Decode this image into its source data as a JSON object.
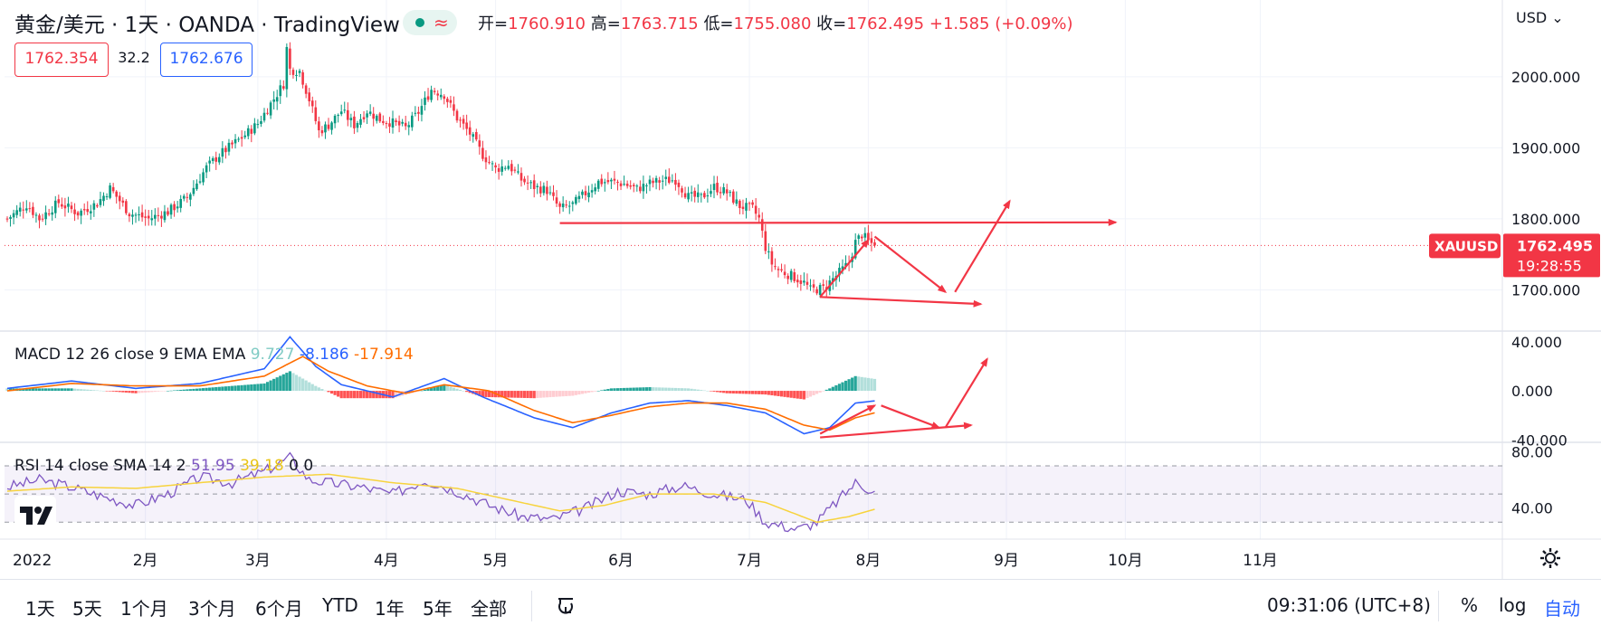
{
  "header": {
    "symbol_title": "黄金/美元 · 1天 · OANDA · TradingView",
    "ohlc": [
      {
        "k": "开=",
        "v": "1760.910"
      },
      {
        "k": "高=",
        "v": "1763.715"
      },
      {
        "k": "低=",
        "v": "1755.080"
      },
      {
        "k": "收=",
        "v": "1762.495"
      },
      {
        "k": "",
        "v": "+1.585 (+0.09%)"
      }
    ],
    "bid": "1762.354",
    "spread": "32.2",
    "ask": "1762.676",
    "live_icon": "wave-icon",
    "currency": "USD"
  },
  "macd_legend": {
    "label": "MACD 12 26 close 9 EMA EMA",
    "hist_value": "9.727",
    "macd_value": "-8.186",
    "signal_value": "-17.914",
    "colors": {
      "hist": "#80cbc4",
      "macd": "#2962ff",
      "signal": "#ff6d00"
    }
  },
  "rsi_legend": {
    "label": "RSI 14 close SMA 14 2",
    "rsi_value": "51.95",
    "sma_value": "39.18",
    "extra1": "0",
    "extra2": "0",
    "colors": {
      "rsi": "#7e57c2",
      "sma": "#f7d33d"
    }
  },
  "price_tag": {
    "symbol": "XAUUSD",
    "price": "1762.495",
    "countdown": "19:28:55"
  },
  "bottom_bar": {
    "ranges": [
      "1天",
      "5天",
      "1个月",
      "3个月",
      "6个月",
      "YTD",
      "1年",
      "5年",
      "全部"
    ],
    "clock": "09:31:06 (UTC+8)",
    "percent": "%",
    "log": "log",
    "auto": "自动"
  },
  "colors": {
    "up": "#089981",
    "down": "#f23645",
    "arrow": "#f23645",
    "grid": "#f0f3fa"
  },
  "chart_data": [
    {
      "type": "candlestick",
      "title": "黄金/美元 · 1天 · OANDA",
      "x_labels": [
        "2022",
        "2月",
        "3月",
        "4月",
        "5月",
        "6月",
        "7月",
        "8月",
        "9月",
        "10月",
        "11月"
      ],
      "y_ticks": [
        2000,
        1900,
        1800,
        1700
      ],
      "y_tick_labels": [
        "2000.000",
        "1900.000",
        "1800.000",
        "1700.000"
      ],
      "ylim": [
        1642,
        2108
      ],
      "last_price": 1762.495,
      "anchors": [
        [
          0,
          1800
        ],
        [
          6,
          1820
        ],
        [
          10,
          1800
        ],
        [
          16,
          1823
        ],
        [
          22,
          1808
        ],
        [
          28,
          1822
        ],
        [
          32,
          1843
        ],
        [
          38,
          1808
        ],
        [
          44,
          1800
        ],
        [
          50,
          1810
        ],
        [
          56,
          1830
        ],
        [
          62,
          1872
        ],
        [
          66,
          1890
        ],
        [
          70,
          1904
        ],
        [
          74,
          1918
        ],
        [
          78,
          1934
        ],
        [
          82,
          1962
        ],
        [
          86,
          1990
        ],
        [
          87,
          2040
        ],
        [
          88,
          2010
        ],
        [
          91,
          2008
        ],
        [
          94,
          1968
        ],
        [
          97,
          1923
        ],
        [
          100,
          1932
        ],
        [
          104,
          1952
        ],
        [
          108,
          1932
        ],
        [
          112,
          1952
        ],
        [
          116,
          1940
        ],
        [
          120,
          1935
        ],
        [
          124,
          1928
        ],
        [
          128,
          1950
        ],
        [
          132,
          1982
        ],
        [
          136,
          1975
        ],
        [
          140,
          1942
        ],
        [
          144,
          1920
        ],
        [
          148,
          1890
        ],
        [
          152,
          1870
        ],
        [
          156,
          1876
        ],
        [
          160,
          1855
        ],
        [
          164,
          1845
        ],
        [
          168,
          1840
        ],
        [
          172,
          1814
        ],
        [
          176,
          1820
        ],
        [
          180,
          1836
        ],
        [
          184,
          1852
        ],
        [
          188,
          1852
        ],
        [
          192,
          1849
        ],
        [
          196,
          1842
        ],
        [
          200,
          1850
        ],
        [
          204,
          1854
        ],
        [
          208,
          1855
        ],
        [
          212,
          1831
        ],
        [
          216,
          1830
        ],
        [
          220,
          1845
        ],
        [
          224,
          1837
        ],
        [
          228,
          1818
        ],
        [
          232,
          1814
        ],
        [
          234,
          1800
        ],
        [
          236,
          1760
        ],
        [
          238,
          1737
        ],
        [
          240,
          1728
        ],
        [
          244,
          1720
        ],
        [
          248,
          1710
        ],
        [
          250,
          1700
        ],
        [
          254,
          1702
        ],
        [
          258,
          1720
        ],
        [
          262,
          1738
        ],
        [
          264,
          1767
        ],
        [
          266,
          1778
        ],
        [
          268,
          1768
        ],
        [
          270,
          1762.5
        ]
      ],
      "annotations": [
        {
          "kind": "horizontal-ray",
          "from": [
            172,
            1794
          ],
          "to": [
            345,
            1795
          ]
        },
        {
          "kind": "arrow-line",
          "from": [
            253,
            1690
          ],
          "to": [
            303,
            1680
          ]
        },
        {
          "kind": "arrow-line",
          "from": [
            253,
            1690
          ],
          "to": [
            268,
            1770
          ]
        },
        {
          "kind": "arrow-line",
          "from": [
            270,
            1775
          ],
          "to": [
            292,
            1697
          ]
        },
        {
          "kind": "arrow-line",
          "from": [
            295,
            1697
          ],
          "to": [
            312,
            1825
          ]
        }
      ]
    },
    {
      "type": "line",
      "title": "MACD 12 26 close 9 EMA EMA",
      "y_ticks": [
        40,
        0,
        -40
      ],
      "y_tick_labels": [
        "40.000",
        "0.000",
        "-40.000"
      ],
      "ylim": [
        -42,
        48
      ],
      "series": [
        {
          "name": "MACD",
          "anchors": [
            [
              0,
              2
            ],
            [
              20,
              8
            ],
            [
              40,
              2
            ],
            [
              60,
              6
            ],
            [
              80,
              18
            ],
            [
              88,
              44
            ],
            [
              96,
              20
            ],
            [
              104,
              5
            ],
            [
              120,
              -5
            ],
            [
              136,
              10
            ],
            [
              148,
              -5
            ],
            [
              164,
              -22
            ],
            [
              176,
              -30
            ],
            [
              188,
              -18
            ],
            [
              200,
              -10
            ],
            [
              212,
              -8
            ],
            [
              224,
              -12
            ],
            [
              236,
              -18
            ],
            [
              248,
              -35
            ],
            [
              256,
              -30
            ],
            [
              264,
              -10
            ],
            [
              270,
              -8.186
            ]
          ]
        },
        {
          "name": "Signal",
          "anchors": [
            [
              0,
              0
            ],
            [
              20,
              6
            ],
            [
              40,
              4
            ],
            [
              60,
              4
            ],
            [
              80,
              12
            ],
            [
              92,
              28
            ],
            [
              100,
              16
            ],
            [
              112,
              4
            ],
            [
              124,
              -2
            ],
            [
              136,
              5
            ],
            [
              150,
              0
            ],
            [
              164,
              -16
            ],
            [
              176,
              -26
            ],
            [
              188,
              -20
            ],
            [
              200,
              -13
            ],
            [
              212,
              -10
            ],
            [
              224,
              -10
            ],
            [
              236,
              -15
            ],
            [
              248,
              -28
            ],
            [
              256,
              -32
            ],
            [
              264,
              -22
            ],
            [
              270,
              -17.914
            ]
          ]
        },
        {
          "name": "Histogram",
          "anchors": [
            [
              0,
              2
            ],
            [
              20,
              2
            ],
            [
              40,
              -2
            ],
            [
              60,
              2
            ],
            [
              80,
              6
            ],
            [
              88,
              16
            ],
            [
              96,
              4
            ],
            [
              104,
              -6
            ],
            [
              120,
              -6
            ],
            [
              136,
              5
            ],
            [
              148,
              -5
            ],
            [
              164,
              -6
            ],
            [
              176,
              -4
            ],
            [
              188,
              2
            ],
            [
              200,
              3
            ],
            [
              212,
              2
            ],
            [
              224,
              -2
            ],
            [
              236,
              -3
            ],
            [
              248,
              -7
            ],
            [
              256,
              2
            ],
            [
              264,
              12
            ],
            [
              270,
              9.727
            ]
          ]
        }
      ],
      "annotations": [
        {
          "kind": "arrow-line",
          "from": [
            253,
            -35
          ],
          "to": [
            270,
            -12
          ]
        },
        {
          "kind": "arrow-line",
          "from": [
            253,
            -38
          ],
          "to": [
            300,
            -28
          ]
        },
        {
          "kind": "arrow-line",
          "from": [
            272,
            -12
          ],
          "to": [
            290,
            -30
          ]
        },
        {
          "kind": "arrow-line",
          "from": [
            292,
            -30
          ],
          "to": [
            305,
            26
          ]
        }
      ]
    },
    {
      "type": "line",
      "title": "RSI 14 close SMA 14 2",
      "y_ticks": [
        80,
        40
      ],
      "y_tick_labels": [
        "80.00",
        "40.00"
      ],
      "ylim": [
        18,
        86
      ],
      "band": [
        30,
        70
      ],
      "series": [
        {
          "name": "RSI",
          "anchors": [
            [
              0,
              55
            ],
            [
              10,
              60
            ],
            [
              20,
              55
            ],
            [
              30,
              48
            ],
            [
              40,
              42
            ],
            [
              50,
              50
            ],
            [
              60,
              62
            ],
            [
              70,
              58
            ],
            [
              80,
              66
            ],
            [
              88,
              76
            ],
            [
              94,
              60
            ],
            [
              100,
              58
            ],
            [
              110,
              55
            ],
            [
              120,
              50
            ],
            [
              130,
              60
            ],
            [
              140,
              52
            ],
            [
              150,
              42
            ],
            [
              160,
              34
            ],
            [
              170,
              32
            ],
            [
              180,
              40
            ],
            [
              190,
              52
            ],
            [
              200,
              50
            ],
            [
              210,
              56
            ],
            [
              220,
              50
            ],
            [
              230,
              46
            ],
            [
              236,
              30
            ],
            [
              246,
              25
            ],
            [
              252,
              30
            ],
            [
              258,
              44
            ],
            [
              264,
              58
            ],
            [
              270,
              51.95
            ]
          ]
        },
        {
          "name": "SMA",
          "anchors": [
            [
              0,
              52
            ],
            [
              20,
              55
            ],
            [
              40,
              54
            ],
            [
              60,
              58
            ],
            [
              80,
              62
            ],
            [
              100,
              64
            ],
            [
              120,
              58
            ],
            [
              140,
              54
            ],
            [
              160,
              44
            ],
            [
              172,
              38
            ],
            [
              186,
              42
            ],
            [
              200,
              50
            ],
            [
              220,
              50
            ],
            [
              236,
              44
            ],
            [
              252,
              30
            ],
            [
              262,
              34
            ],
            [
              270,
              39.18
            ]
          ]
        }
      ]
    }
  ]
}
